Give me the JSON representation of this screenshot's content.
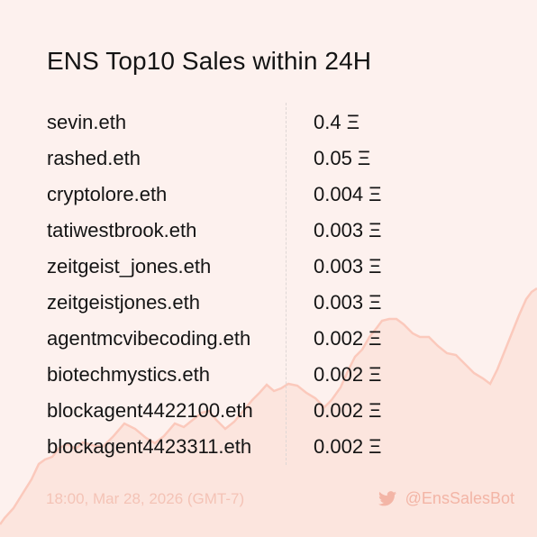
{
  "title": "ENS Top10 Sales within 24H",
  "sales": [
    {
      "name": "sevin.eth",
      "price": "0.4 Ξ"
    },
    {
      "name": "rashed.eth",
      "price": "0.05 Ξ"
    },
    {
      "name": "cryptolore.eth",
      "price": "0.004 Ξ"
    },
    {
      "name": "tatiwestbrook.eth",
      "price": "0.003 Ξ"
    },
    {
      "name": "zeitgeist_jones.eth",
      "price": "0.003 Ξ"
    },
    {
      "name": "zeitgeistjones.eth",
      "price": "0.003 Ξ"
    },
    {
      "name": "agentmcvibecoding.eth",
      "price": "0.002 Ξ"
    },
    {
      "name": "biotechmystics.eth",
      "price": "0.002 Ξ"
    },
    {
      "name": "blockagent4422100.eth",
      "price": "0.002 Ξ"
    },
    {
      "name": "blockagent4423311.eth",
      "price": "0.002 Ξ"
    }
  ],
  "footer": {
    "timestamp": "18:00, Mar 28, 2026 (GMT-7)",
    "handle": "@EnsSalesBot",
    "icon": "twitter-bird-icon"
  },
  "colors": {
    "background": "#fdf1ee",
    "line": "#fbc9bc",
    "area": "#fbe0d8",
    "text": "#141414",
    "footer": "#f3b5a6"
  }
}
